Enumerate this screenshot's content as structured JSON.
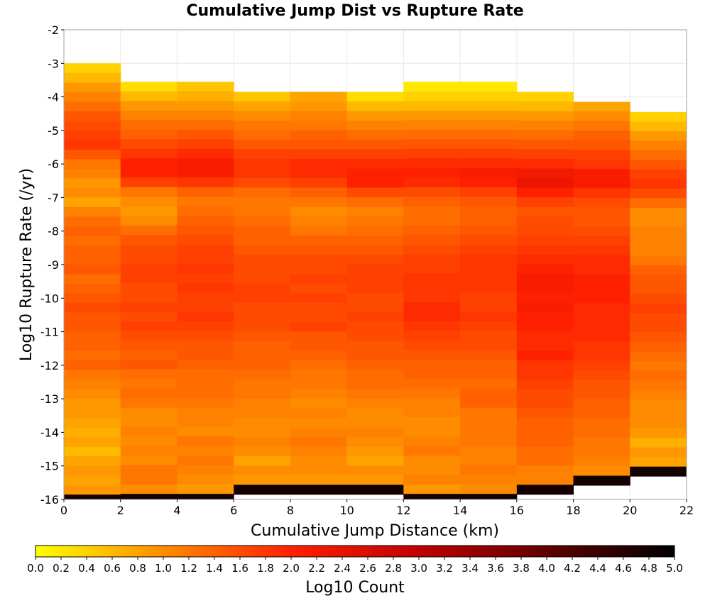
{
  "chart_data": {
    "type": "heatmap",
    "title": "Cumulative Jump Dist vs Rupture Rate",
    "xlabel": "Cumulative Jump Distance (km)",
    "ylabel": "Log10 Rupture Rate (/yr)",
    "xlim": [
      0,
      22
    ],
    "ylim": [
      -16,
      -2
    ],
    "x_ticks": [
      0,
      2,
      4,
      6,
      8,
      10,
      12,
      14,
      16,
      18,
      20,
      22
    ],
    "y_ticks": [
      -2,
      -3,
      -4,
      -5,
      -6,
      -7,
      -8,
      -9,
      -10,
      -11,
      -12,
      -13,
      -14,
      -15,
      -16
    ],
    "x_bin_width": 2,
    "y_bin_width": 0.2857,
    "colorbar": {
      "label": "Log10 Count",
      "range": [
        0.0,
        5.0
      ],
      "ticks": [
        "0.0",
        "0.2",
        "0.4",
        "0.6",
        "0.8",
        "1.0",
        "1.2",
        "1.4",
        "1.6",
        "1.8",
        "2.0",
        "2.2",
        "2.4",
        "2.6",
        "2.8",
        "3.0",
        "3.2",
        "3.4",
        "3.6",
        "3.8",
        "4.0",
        "4.2",
        "4.4",
        "4.6",
        "4.8",
        "5.0"
      ],
      "colors": [
        "#ffff00",
        "#ff8c00",
        "#ff2000",
        "#c00000",
        "#600000",
        "#000000"
      ]
    },
    "grid": true,
    "columns": [
      {
        "x_start": 0,
        "y_top": -3.0,
        "values": [
          0.4,
          0.6,
          0.9,
          1.1,
          1.3,
          1.5,
          1.6,
          1.7,
          1.8,
          1.5,
          1.2,
          1.1,
          0.9,
          1.0,
          0.8,
          1.1,
          1.3,
          1.4,
          1.3,
          1.4,
          1.4,
          1.5,
          1.3,
          1.4,
          1.5,
          1.6,
          1.5,
          1.5,
          1.4,
          1.4,
          1.3,
          1.4,
          1.2,
          1.1,
          1.0,
          0.9,
          0.9,
          0.8,
          0.7,
          0.8,
          0.6,
          0.8,
          0.9,
          0.8,
          0.9,
          4.8
        ]
      },
      {
        "x_start": 2,
        "y_top": -3.55,
        "values": [
          0.3,
          0.6,
          0.9,
          1.1,
          1.3,
          1.4,
          1.6,
          1.8,
          2.0,
          2.0,
          1.7,
          1.2,
          1.0,
          0.9,
          1.0,
          1.3,
          1.5,
          1.6,
          1.6,
          1.7,
          1.7,
          1.6,
          1.6,
          1.7,
          1.6,
          1.7,
          1.6,
          1.5,
          1.4,
          1.5,
          1.3,
          1.2,
          1.3,
          1.2,
          1.0,
          1.0,
          1.1,
          1.0,
          1.1,
          1.0,
          1.2,
          1.2,
          1.0,
          4.8
        ]
      },
      {
        "x_start": 4,
        "y_top": -3.55,
        "values": [
          0.5,
          0.7,
          0.9,
          1.1,
          1.3,
          1.5,
          1.7,
          1.9,
          2.1,
          2.1,
          1.8,
          1.4,
          1.2,
          1.3,
          1.4,
          1.5,
          1.6,
          1.7,
          1.7,
          1.8,
          1.7,
          1.8,
          1.7,
          1.7,
          1.8,
          1.7,
          1.6,
          1.5,
          1.5,
          1.4,
          1.3,
          1.3,
          1.3,
          1.2,
          1.1,
          1.1,
          1.0,
          1.2,
          1.1,
          1.2,
          1.1,
          1.0,
          0.9,
          4.8
        ]
      },
      {
        "x_start": 6,
        "y_top": -3.85,
        "values": [
          0.5,
          0.8,
          1.0,
          1.2,
          1.3,
          1.5,
          1.7,
          1.8,
          1.8,
          1.6,
          1.3,
          1.2,
          1.2,
          1.3,
          1.4,
          1.4,
          1.5,
          1.6,
          1.6,
          1.6,
          1.7,
          1.7,
          1.6,
          1.6,
          1.6,
          1.5,
          1.4,
          1.4,
          1.4,
          1.3,
          1.2,
          1.2,
          1.1,
          1.1,
          1.0,
          1.0,
          1.1,
          1.0,
          0.8,
          1.0,
          0.9,
          4.8
        ]
      },
      {
        "x_start": 8,
        "y_top": -3.85,
        "values": [
          0.8,
          0.9,
          1.1,
          1.2,
          1.4,
          1.5,
          1.7,
          1.9,
          1.9,
          1.7,
          1.4,
          1.2,
          1.0,
          1.1,
          1.2,
          1.4,
          1.5,
          1.6,
          1.6,
          1.7,
          1.6,
          1.7,
          1.6,
          1.6,
          1.7,
          1.5,
          1.5,
          1.4,
          1.3,
          1.2,
          1.2,
          1.1,
          1.0,
          1.1,
          1.0,
          1.1,
          1.2,
          1.1,
          1.0,
          1.0,
          0.9,
          4.8
        ]
      },
      {
        "x_start": 10,
        "y_top": -3.85,
        "values": [
          0.3,
          0.6,
          0.9,
          1.1,
          1.3,
          1.5,
          1.7,
          1.9,
          2.0,
          2.0,
          1.6,
          1.3,
          1.1,
          1.2,
          1.3,
          1.4,
          1.5,
          1.6,
          1.7,
          1.7,
          1.7,
          1.6,
          1.6,
          1.7,
          1.6,
          1.6,
          1.5,
          1.5,
          1.4,
          1.3,
          1.3,
          1.2,
          1.1,
          1.0,
          1.0,
          1.1,
          1.0,
          0.9,
          0.8,
          1.0,
          0.9,
          4.8
        ]
      },
      {
        "x_start": 12,
        "y_top": -3.55,
        "values": [
          0.2,
          0.4,
          0.6,
          0.9,
          1.1,
          1.3,
          1.5,
          1.7,
          1.9,
          2.0,
          1.9,
          1.6,
          1.4,
          1.3,
          1.3,
          1.4,
          1.5,
          1.6,
          1.7,
          1.7,
          1.8,
          1.8,
          1.8,
          1.9,
          1.9,
          1.8,
          1.7,
          1.6,
          1.5,
          1.4,
          1.4,
          1.3,
          1.2,
          1.1,
          1.1,
          1.0,
          1.0,
          1.1,
          1.2,
          1.0,
          1.0,
          1.1,
          0.9,
          4.8
        ]
      },
      {
        "x_start": 14,
        "y_top": -3.55,
        "values": [
          0.2,
          0.4,
          0.6,
          0.9,
          1.1,
          1.3,
          1.5,
          1.7,
          1.9,
          2.1,
          2.0,
          1.7,
          1.5,
          1.4,
          1.4,
          1.5,
          1.6,
          1.7,
          1.8,
          1.8,
          1.8,
          1.8,
          1.7,
          1.7,
          1.8,
          1.7,
          1.6,
          1.6,
          1.5,
          1.4,
          1.4,
          1.3,
          1.4,
          1.4,
          1.2,
          1.2,
          1.2,
          1.2,
          1.1,
          1.1,
          1.2,
          1.1,
          1.0,
          4.8
        ]
      },
      {
        "x_start": 16,
        "y_top": -3.85,
        "values": [
          0.4,
          0.6,
          0.9,
          1.1,
          1.3,
          1.5,
          1.7,
          1.9,
          2.2,
          2.3,
          2.0,
          1.7,
          1.5,
          1.6,
          1.6,
          1.7,
          1.8,
          1.9,
          2.0,
          2.1,
          2.1,
          2.0,
          2.1,
          2.0,
          2.0,
          1.9,
          1.9,
          2.0,
          1.8,
          1.8,
          1.7,
          1.6,
          1.6,
          1.5,
          1.4,
          1.4,
          1.4,
          1.3,
          1.3,
          1.1,
          1.1,
          4.8
        ]
      },
      {
        "x_start": 18,
        "y_top": -4.15,
        "values": [
          0.8,
          1.0,
          1.2,
          1.4,
          1.5,
          1.7,
          1.8,
          2.1,
          2.1,
          1.8,
          1.6,
          1.5,
          1.5,
          1.6,
          1.7,
          1.8,
          1.9,
          1.9,
          2.0,
          2.0,
          2.0,
          1.9,
          1.9,
          1.9,
          1.9,
          1.8,
          1.8,
          1.7,
          1.6,
          1.5,
          1.5,
          1.4,
          1.4,
          1.3,
          1.3,
          1.2,
          1.2,
          1.1,
          1.0,
          4.8
        ]
      },
      {
        "x_start": 20,
        "y_top": -4.45,
        "values": [
          0.4,
          0.6,
          0.9,
          1.1,
          1.3,
          1.5,
          1.7,
          1.8,
          1.6,
          1.3,
          1.0,
          1.0,
          1.1,
          1.1,
          1.1,
          1.2,
          1.4,
          1.5,
          1.5,
          1.6,
          1.7,
          1.6,
          1.6,
          1.5,
          1.4,
          1.3,
          1.2,
          1.3,
          1.2,
          1.1,
          1.0,
          1.0,
          1.0,
          0.9,
          0.7,
          0.9,
          0.8,
          4.8
        ]
      }
    ]
  }
}
